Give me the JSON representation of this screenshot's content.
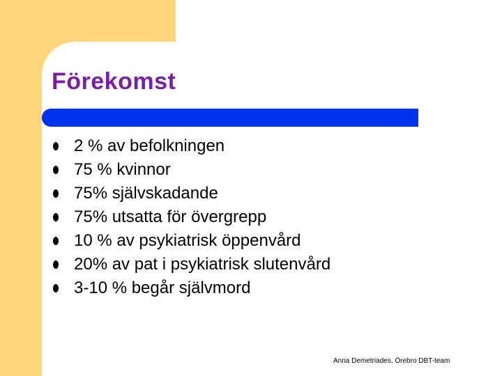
{
  "slide": {
    "title": "Förekomst",
    "bullets": [
      "2 % av befolkningen",
      "75 % kvinnor",
      "75% självskadande",
      "75% utsatta för övergrepp",
      "10 % av psykiatrisk öppenvård",
      "20% av pat i psykiatrisk slutenvård",
      "3-10 % begår självmord"
    ],
    "footer": "Anna Demetriades, Örebro DBT-team"
  },
  "colors": {
    "accent_block": "#ffd67a",
    "title": "#7b1fa2",
    "title_rule": "#0033ee",
    "background": "#ffffff"
  }
}
